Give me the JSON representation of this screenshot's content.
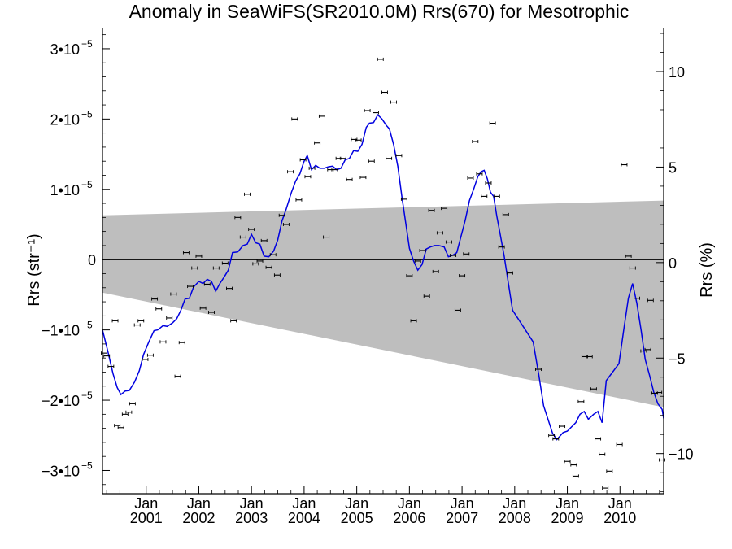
{
  "chart_data": {
    "type": "scatter",
    "title": "Anomaly in SeaWiFS(SR2010.0M) Rrs(670) for Mesotrophic",
    "ylabel_left": "Rrs (str⁻¹)",
    "ylabel_right": "Rrs (%)",
    "xlabel": "",
    "x_tick_labels": [
      {
        "month": "Jan",
        "year": "2001",
        "x": 2001.0
      },
      {
        "month": "Jan",
        "year": "2002",
        "x": 2002.0
      },
      {
        "month": "Jan",
        "year": "2003",
        "x": 2003.0
      },
      {
        "month": "Jan",
        "year": "2004",
        "x": 2004.0
      },
      {
        "month": "Jan",
        "year": "2005",
        "x": 2005.0
      },
      {
        "month": "Jan",
        "year": "2006",
        "x": 2006.0
      },
      {
        "month": "Jan",
        "year": "2007",
        "x": 2007.0
      },
      {
        "month": "Jan",
        "year": "2008",
        "x": 2008.0
      },
      {
        "month": "Jan",
        "year": "2009",
        "x": 2009.0
      },
      {
        "month": "Jan",
        "year": "2010",
        "x": 2010.0
      }
    ],
    "left_ticks": [
      {
        "value": 3e-05,
        "label": "3•10",
        "exp": "−5"
      },
      {
        "value": 2e-05,
        "label": "2•10",
        "exp": "−5"
      },
      {
        "value": 1e-05,
        "label": "1•10",
        "exp": "−5"
      },
      {
        "value": 0,
        "label": "0",
        "exp": ""
      },
      {
        "value": -1e-05,
        "label": "−1•10",
        "exp": "−5"
      },
      {
        "value": -2e-05,
        "label": "−2•10",
        "exp": "−5"
      },
      {
        "value": -3e-05,
        "label": "−3•10",
        "exp": "−5"
      }
    ],
    "right_ticks": [
      {
        "value": 10,
        "label": "10"
      },
      {
        "value": 5,
        "label": "5"
      },
      {
        "value": 0,
        "label": "0"
      },
      {
        "value": -5,
        "label": "−5"
      },
      {
        "value": -10,
        "label": "−10"
      }
    ],
    "xlim": [
      2000.17,
      2010.83
    ],
    "ylim": [
      -3.33e-05,
      3.3e-05
    ],
    "ylim_right_percent": [
      -12.1,
      12.3
    ],
    "zero_line": true,
    "grid": false,
    "shaded_band": {
      "color": "#bebebe",
      "start": {
        "x": 2000.17,
        "upper": 6.3e-06,
        "lower": -4.7e-06
      },
      "end": {
        "x": 2010.83,
        "upper": 8.4e-06,
        "lower": -2.1e-05
      }
    },
    "points_color": "#000000",
    "line_color": "#0000e0",
    "points": [
      [
        2000.2,
        -1.33e-05
      ],
      [
        2000.25,
        -1.37e-05
      ],
      [
        2000.33,
        -1.52e-05
      ],
      [
        2000.41,
        -8.7e-06
      ],
      [
        2000.45,
        -2.36e-05
      ],
      [
        2000.52,
        -2.39e-05
      ],
      [
        2000.6,
        -2.2e-05
      ],
      [
        2000.67,
        -2.17e-05
      ],
      [
        2000.74,
        -2.05e-05
      ],
      [
        2000.83,
        -9.3e-06
      ],
      [
        2000.9,
        -8.7e-06
      ],
      [
        2000.98,
        -1.42e-05
      ],
      [
        2001.08,
        -1.36e-05
      ],
      [
        2001.16,
        -5.6e-06
      ],
      [
        2001.24,
        -7e-06
      ],
      [
        2001.32,
        -1.17e-05
      ],
      [
        2001.44,
        -8.3e-06
      ],
      [
        2001.52,
        -4.9e-06
      ],
      [
        2001.6,
        -1.66e-05
      ],
      [
        2001.68,
        -1.18e-05
      ],
      [
        2001.76,
        1e-06
      ],
      [
        2001.84,
        -3.8e-06
      ],
      [
        2001.92,
        -1.2e-06
      ],
      [
        2002.0,
        5e-07
      ],
      [
        2002.08,
        -6.9e-06
      ],
      [
        2002.16,
        -3.5e-06
      ],
      [
        2002.24,
        -7.5e-06
      ],
      [
        2002.33,
        -1.2e-06
      ],
      [
        2002.5,
        -5e-07
      ],
      [
        2002.58,
        -4.1e-06
      ],
      [
        2002.66,
        -8.7e-06
      ],
      [
        2002.74,
        6e-06
      ],
      [
        2002.84,
        3.2e-06
      ],
      [
        2002.92,
        9.3e-06
      ],
      [
        2003.0,
        4.3e-06
      ],
      [
        2003.08,
        -6e-07
      ],
      [
        2003.16,
        -2e-07
      ],
      [
        2003.24,
        2.7e-06
      ],
      [
        2003.33,
        -1.1e-06
      ],
      [
        2003.41,
        7e-07
      ],
      [
        2003.49,
        -2.2e-06
      ],
      [
        2003.58,
        6.3e-06
      ],
      [
        2003.66,
        5e-06
      ],
      [
        2003.74,
        1.25e-05
      ],
      [
        2003.82,
        2e-05
      ],
      [
        2003.9,
        8.5e-06
      ],
      [
        2003.98,
        1.42e-05
      ],
      [
        2004.07,
        1.18e-05
      ],
      [
        2004.15,
        1.3e-05
      ],
      [
        2004.25,
        1.66e-05
      ],
      [
        2004.34,
        2.04e-05
      ],
      [
        2004.42,
        3.2e-06
      ],
      [
        2004.5,
        1.28e-05
      ],
      [
        2004.58,
        1.28e-05
      ],
      [
        2004.66,
        1.44e-05
      ],
      [
        2004.74,
        1.44e-05
      ],
      [
        2004.86,
        1.14e-05
      ],
      [
        2004.95,
        1.71e-05
      ],
      [
        2005.03,
        1.7e-05
      ],
      [
        2005.12,
        1.17e-05
      ],
      [
        2005.2,
        2.12e-05
      ],
      [
        2005.28,
        1.4e-05
      ],
      [
        2005.36,
        2.09e-05
      ],
      [
        2005.45,
        2.85e-05
      ],
      [
        2005.53,
        2.38e-05
      ],
      [
        2005.61,
        1.44e-05
      ],
      [
        2005.7,
        2.24e-05
      ],
      [
        2005.8,
        1.48e-05
      ],
      [
        2005.9,
        8.6e-06
      ],
      [
        2006.0,
        -2.3e-06
      ],
      [
        2006.08,
        -8.7e-06
      ],
      [
        2006.16,
        -2e-07
      ],
      [
        2006.25,
        1.3e-06
      ],
      [
        2006.33,
        -5.2e-06
      ],
      [
        2006.42,
        7e-06
      ],
      [
        2006.5,
        -1.7e-06
      ],
      [
        2006.58,
        3.8e-06
      ],
      [
        2006.66,
        7.3e-06
      ],
      [
        2006.75,
        2.5e-06
      ],
      [
        2006.83,
        6e-07
      ],
      [
        2006.92,
        -7.2e-06
      ],
      [
        2007.0,
        -2.3e-06
      ],
      [
        2007.08,
        8e-07
      ],
      [
        2007.16,
        1.16e-05
      ],
      [
        2007.25,
        1.68e-05
      ],
      [
        2007.33,
        1.22e-05
      ],
      [
        2007.42,
        9e-06
      ],
      [
        2007.5,
        1.09e-05
      ],
      [
        2007.58,
        1.94e-05
      ],
      [
        2007.66,
        9e-06
      ],
      [
        2007.75,
        1.8e-06
      ],
      [
        2007.83,
        6.4e-06
      ],
      [
        2007.91,
        -1.9e-06
      ],
      [
        2008.45,
        -1.56e-05
      ],
      [
        2008.7,
        -2.5e-05
      ],
      [
        2008.78,
        -2.55e-05
      ],
      [
        2008.9,
        -2.37e-05
      ],
      [
        2009.0,
        -2.87e-05
      ],
      [
        2009.12,
        -2.92e-05
      ],
      [
        2009.16,
        -3.08e-05
      ],
      [
        2009.26,
        -2.02e-05
      ],
      [
        2009.33,
        -1.38e-05
      ],
      [
        2009.42,
        -1.38e-05
      ],
      [
        2009.5,
        -1.84e-05
      ],
      [
        2009.58,
        -2.55e-05
      ],
      [
        2009.66,
        -2.77e-05
      ],
      [
        2009.72,
        -3.25e-05
      ],
      [
        2009.8,
        -3.01e-05
      ],
      [
        2009.99,
        -2.63e-05
      ],
      [
        2010.08,
        1.35e-05
      ],
      [
        2010.16,
        5e-07
      ],
      [
        2010.24,
        -1.2e-06
      ],
      [
        2010.32,
        -5.5e-06
      ],
      [
        2010.45,
        -1.3e-05
      ],
      [
        2010.53,
        -1.28e-05
      ],
      [
        2010.58,
        -5.8e-06
      ],
      [
        2010.66,
        -1.9e-05
      ],
      [
        2010.74,
        -1.89e-05
      ],
      [
        2010.8,
        -2.85e-05
      ]
    ],
    "smoothed_line": [
      [
        2000.17,
        -1e-05
      ],
      [
        2000.27,
        -1.3e-05
      ],
      [
        2000.37,
        -1.62e-05
      ],
      [
        2000.45,
        -1.82e-05
      ],
      [
        2000.52,
        -1.92e-05
      ],
      [
        2000.6,
        -1.87e-05
      ],
      [
        2000.68,
        -1.86e-05
      ],
      [
        2000.78,
        -1.74e-05
      ],
      [
        2000.87,
        -1.58e-05
      ],
      [
        2000.95,
        -1.35e-05
      ],
      [
        2001.05,
        -1.17e-05
      ],
      [
        2001.15,
        -1.01e-05
      ],
      [
        2001.22,
        -1e-05
      ],
      [
        2001.32,
        -9.4e-06
      ],
      [
        2001.4,
        -9.5e-06
      ],
      [
        2001.5,
        -9e-06
      ],
      [
        2001.58,
        -8.4e-06
      ],
      [
        2001.66,
        -7.2e-06
      ],
      [
        2001.74,
        -5.6e-06
      ],
      [
        2001.82,
        -5.5e-06
      ],
      [
        2001.9,
        -3.9e-06
      ],
      [
        2002.0,
        -3.1e-06
      ],
      [
        2002.08,
        -3.4e-06
      ],
      [
        2002.16,
        -2.8e-06
      ],
      [
        2002.24,
        -3.1e-06
      ],
      [
        2002.32,
        -4.5e-06
      ],
      [
        2002.4,
        -3.4e-06
      ],
      [
        2002.48,
        -2.5e-06
      ],
      [
        2002.56,
        -1.5e-06
      ],
      [
        2002.64,
        1e-06
      ],
      [
        2002.74,
        1.1e-06
      ],
      [
        2002.84,
        2e-06
      ],
      [
        2002.92,
        2.2e-06
      ],
      [
        2003.0,
        3.6e-06
      ],
      [
        2003.08,
        2.4e-06
      ],
      [
        2003.16,
        2.2e-06
      ],
      [
        2003.24,
        5e-07
      ],
      [
        2003.33,
        4e-07
      ],
      [
        2003.42,
        1.2e-06
      ],
      [
        2003.5,
        2.8e-06
      ],
      [
        2003.58,
        5.5e-06
      ],
      [
        2003.66,
        7.2e-06
      ],
      [
        2003.76,
        9.6e-06
      ],
      [
        2003.84,
        1.12e-05
      ],
      [
        2003.92,
        1.22e-05
      ],
      [
        2004.0,
        1.4e-05
      ],
      [
        2004.06,
        1.48e-05
      ],
      [
        2004.14,
        1.28e-05
      ],
      [
        2004.22,
        1.34e-05
      ],
      [
        2004.3,
        1.3e-05
      ],
      [
        2004.38,
        1.3e-05
      ],
      [
        2004.46,
        1.32e-05
      ],
      [
        2004.54,
        1.33e-05
      ],
      [
        2004.62,
        1.28e-05
      ],
      [
        2004.7,
        1.3e-05
      ],
      [
        2004.78,
        1.42e-05
      ],
      [
        2004.86,
        1.44e-05
      ],
      [
        2004.94,
        1.55e-05
      ],
      [
        2005.02,
        1.54e-05
      ],
      [
        2005.1,
        1.64e-05
      ],
      [
        2005.18,
        1.88e-05
      ],
      [
        2005.24,
        1.94e-05
      ],
      [
        2005.32,
        1.95e-05
      ],
      [
        2005.4,
        2.06e-05
      ],
      [
        2005.48,
        2e-05
      ],
      [
        2005.56,
        1.91e-05
      ],
      [
        2005.62,
        1.86e-05
      ],
      [
        2005.7,
        1.64e-05
      ],
      [
        2005.78,
        1.33e-05
      ],
      [
        2005.86,
        8.8e-06
      ],
      [
        2005.94,
        4.7e-06
      ],
      [
        2006.0,
        1.6e-06
      ],
      [
        2006.08,
        -2e-07
      ],
      [
        2006.16,
        -1.5e-06
      ],
      [
        2006.24,
        -7e-07
      ],
      [
        2006.32,
        1.5e-06
      ],
      [
        2006.4,
        1.8e-06
      ],
      [
        2006.48,
        2e-06
      ],
      [
        2006.56,
        2e-06
      ],
      [
        2006.66,
        1.8e-06
      ],
      [
        2006.74,
        4e-07
      ],
      [
        2006.82,
        6e-07
      ],
      [
        2006.9,
        1e-06
      ],
      [
        2006.98,
        3.3e-06
      ],
      [
        2007.06,
        5.6e-06
      ],
      [
        2007.14,
        8.4e-06
      ],
      [
        2007.22,
        1e-05
      ],
      [
        2007.3,
        1.18e-05
      ],
      [
        2007.36,
        1.25e-05
      ],
      [
        2007.42,
        1.27e-05
      ],
      [
        2007.48,
        1.15e-05
      ],
      [
        2007.54,
        9.6e-06
      ],
      [
        2007.6,
        9e-06
      ],
      [
        2007.66,
        6.2e-06
      ],
      [
        2007.72,
        3.8e-06
      ],
      [
        2007.8,
        5e-07
      ],
      [
        2007.88,
        -3.4e-06
      ],
      [
        2007.96,
        -7.2e-06
      ],
      [
        2008.35,
        -1.17e-05
      ],
      [
        2008.46,
        -1.65e-05
      ],
      [
        2008.55,
        -2.08e-05
      ],
      [
        2008.72,
        -2.47e-05
      ],
      [
        2008.8,
        -2.56e-05
      ],
      [
        2008.92,
        -2.46e-05
      ],
      [
        2009.0,
        -2.44e-05
      ],
      [
        2009.08,
        -2.38e-05
      ],
      [
        2009.16,
        -2.32e-05
      ],
      [
        2009.24,
        -2.2e-05
      ],
      [
        2009.32,
        -2.16e-05
      ],
      [
        2009.4,
        -2.27e-05
      ],
      [
        2009.5,
        -2.2e-05
      ],
      [
        2009.58,
        -2.16e-05
      ],
      [
        2009.66,
        -2.32e-05
      ],
      [
        2009.74,
        -1.72e-05
      ],
      [
        2009.98,
        -1.48e-05
      ],
      [
        2010.08,
        -9.5e-06
      ],
      [
        2010.16,
        -5.5e-06
      ],
      [
        2010.24,
        -3.4e-06
      ],
      [
        2010.32,
        -6.2e-06
      ],
      [
        2010.4,
        -1e-05
      ],
      [
        2010.48,
        -1.42e-05
      ],
      [
        2010.56,
        -1.64e-05
      ],
      [
        2010.64,
        -1.88e-05
      ],
      [
        2010.72,
        -2.05e-05
      ],
      [
        2010.8,
        -2.13e-05
      ],
      [
        2010.83,
        -2.26e-05
      ]
    ]
  }
}
